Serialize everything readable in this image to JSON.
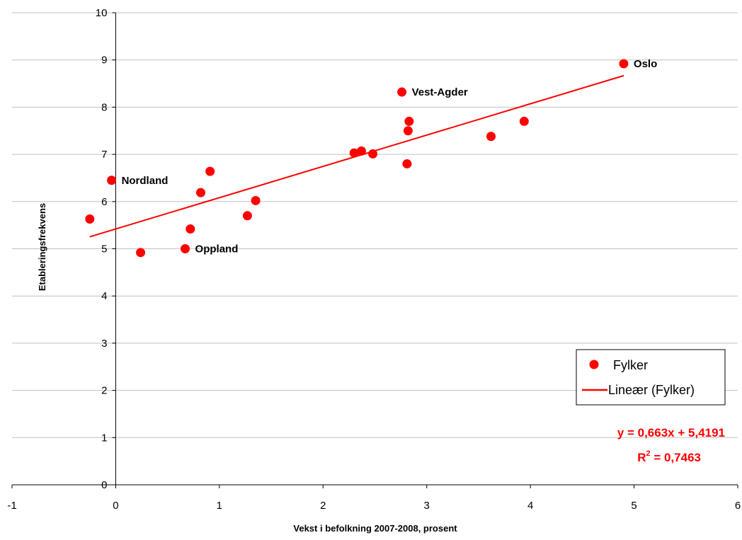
{
  "chart_data": {
    "type": "scatter",
    "title": "",
    "xlabel": "Vekst i befolkning 2007-2008, prosent",
    "ylabel": "Etableringsfrekvens",
    "xlim": [
      -1,
      6
    ],
    "ylim": [
      0,
      10
    ],
    "x_ticks": [
      "-1",
      "0",
      "1",
      "2",
      "3",
      "4",
      "5",
      "6"
    ],
    "y_ticks": [
      "0",
      "1",
      "2",
      "3",
      "4",
      "5",
      "6",
      "7",
      "8",
      "9",
      "10"
    ],
    "grid": "horizontal",
    "legend_position": "right",
    "series": [
      {
        "name": "Fylker",
        "color": "#ff0000",
        "points": [
          {
            "x": -0.25,
            "y": 5.63,
            "label": ""
          },
          {
            "x": -0.04,
            "y": 6.45,
            "label": "Nordland"
          },
          {
            "x": 0.24,
            "y": 4.92,
            "label": ""
          },
          {
            "x": 0.67,
            "y": 5.0,
            "label": "Oppland"
          },
          {
            "x": 0.72,
            "y": 5.42,
            "label": ""
          },
          {
            "x": 0.82,
            "y": 6.19,
            "label": ""
          },
          {
            "x": 0.91,
            "y": 6.64,
            "label": ""
          },
          {
            "x": 1.27,
            "y": 5.7,
            "label": ""
          },
          {
            "x": 1.35,
            "y": 6.02,
            "label": ""
          },
          {
            "x": 2.3,
            "y": 7.03,
            "label": ""
          },
          {
            "x": 2.37,
            "y": 7.07,
            "label": ""
          },
          {
            "x": 2.48,
            "y": 7.01,
            "label": ""
          },
          {
            "x": 2.76,
            "y": 8.32,
            "label": "Vest-Agder"
          },
          {
            "x": 2.81,
            "y": 6.8,
            "label": ""
          },
          {
            "x": 2.82,
            "y": 7.5,
            "label": ""
          },
          {
            "x": 2.83,
            "y": 7.7,
            "label": ""
          },
          {
            "x": 3.62,
            "y": 7.38,
            "label": ""
          },
          {
            "x": 3.94,
            "y": 7.7,
            "label": ""
          },
          {
            "x": 4.9,
            "y": 8.92,
            "label": "Oslo"
          }
        ]
      }
    ],
    "trendline": {
      "name": "Lineær (Fylker)",
      "color": "#ff0000",
      "slope": 0.663,
      "intercept": 5.4191,
      "x_range": [
        -0.25,
        4.9
      ],
      "equation_text": "y = 0,663x + 5,4191",
      "r2_prefix": "R",
      "r2_sup": "2",
      "r2_value": " = 0,7463"
    }
  }
}
